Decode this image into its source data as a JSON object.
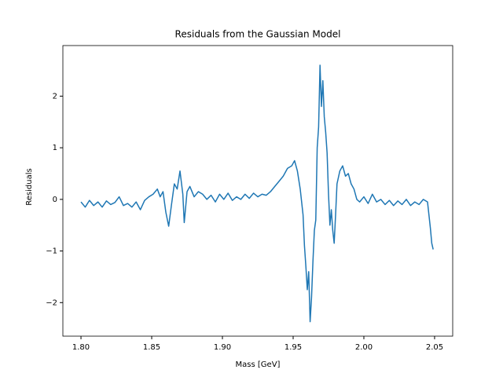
{
  "chart_data": {
    "type": "line",
    "title": "Residuals from the Gaussian Model",
    "x_label": "Mass [GeV]",
    "y_label": "Residuals",
    "xlim": [
      1.7872,
      2.0628
    ],
    "ylim": [
      -2.65,
      2.98
    ],
    "xticks": [
      {
        "value": 1.8,
        "label": "1.80"
      },
      {
        "value": 1.85,
        "label": "1.85"
      },
      {
        "value": 1.9,
        "label": "1.90"
      },
      {
        "value": 1.95,
        "label": "1.95"
      },
      {
        "value": 2.0,
        "label": "2.00"
      },
      {
        "value": 2.05,
        "label": "2.05"
      }
    ],
    "yticks": [
      {
        "value": -2,
        "label": "−2"
      },
      {
        "value": -1,
        "label": "−1"
      },
      0,
      1,
      2
    ],
    "grid": false,
    "series": [
      {
        "color": "#1f77b4",
        "x": [
          1.8,
          1.803,
          1.806,
          1.809,
          1.812,
          1.815,
          1.818,
          1.821,
          1.824,
          1.827,
          1.83,
          1.833,
          1.836,
          1.839,
          1.842,
          1.845,
          1.848,
          1.851,
          1.854,
          1.856,
          1.858,
          1.86,
          1.862,
          1.864,
          1.866,
          1.868,
          1.87,
          1.872,
          1.873,
          1.875,
          1.877,
          1.88,
          1.883,
          1.886,
          1.889,
          1.892,
          1.895,
          1.898,
          1.901,
          1.904,
          1.907,
          1.91,
          1.913,
          1.916,
          1.919,
          1.922,
          1.925,
          1.928,
          1.931,
          1.934,
          1.937,
          1.94,
          1.943,
          1.946,
          1.949,
          1.951,
          1.953,
          1.955,
          1.957,
          1.958,
          1.959,
          1.96,
          1.961,
          1.962,
          1.963,
          1.964,
          1.965,
          1.966,
          1.967,
          1.968,
          1.969,
          1.97,
          1.971,
          1.972,
          1.973,
          1.974,
          1.975,
          1.976,
          1.977,
          1.978,
          1.979,
          1.98,
          1.981,
          1.983,
          1.985,
          1.987,
          1.989,
          1.991,
          1.993,
          1.995,
          1.997,
          2.0,
          2.003,
          2.006,
          2.009,
          2.012,
          2.015,
          2.018,
          2.021,
          2.024,
          2.027,
          2.03,
          2.033,
          2.036,
          2.039,
          2.042,
          2.045,
          2.046,
          2.047,
          2.048,
          2.049
        ],
        "values": [
          -0.05,
          -0.15,
          -0.02,
          -0.12,
          -0.05,
          -0.15,
          -0.03,
          -0.1,
          -0.06,
          0.05,
          -0.12,
          -0.08,
          -0.15,
          -0.05,
          -0.2,
          -0.02,
          0.05,
          0.1,
          0.2,
          0.05,
          0.15,
          -0.25,
          -0.52,
          -0.1,
          0.3,
          0.2,
          0.55,
          0.1,
          -0.45,
          0.15,
          0.25,
          0.05,
          0.15,
          0.1,
          0.0,
          0.08,
          -0.05,
          0.1,
          0.0,
          0.12,
          -0.02,
          0.05,
          0.0,
          0.1,
          0.02,
          0.12,
          0.05,
          0.1,
          0.08,
          0.15,
          0.25,
          0.35,
          0.45,
          0.6,
          0.65,
          0.75,
          0.55,
          0.2,
          -0.3,
          -0.9,
          -1.3,
          -1.75,
          -1.4,
          -2.37,
          -1.9,
          -1.2,
          -0.6,
          -0.4,
          1.0,
          1.4,
          2.6,
          1.8,
          2.3,
          1.6,
          1.3,
          0.9,
          0.1,
          -0.5,
          -0.2,
          -0.6,
          -0.85,
          -0.3,
          0.3,
          0.55,
          0.65,
          0.45,
          0.5,
          0.3,
          0.2,
          0.0,
          -0.05,
          0.05,
          -0.08,
          0.1,
          -0.05,
          0.0,
          -0.1,
          -0.02,
          -0.12,
          -0.03,
          -0.1,
          0.0,
          -0.12,
          -0.05,
          -0.1,
          0.0,
          -0.05,
          -0.3,
          -0.55,
          -0.85,
          -0.97
        ]
      }
    ]
  }
}
